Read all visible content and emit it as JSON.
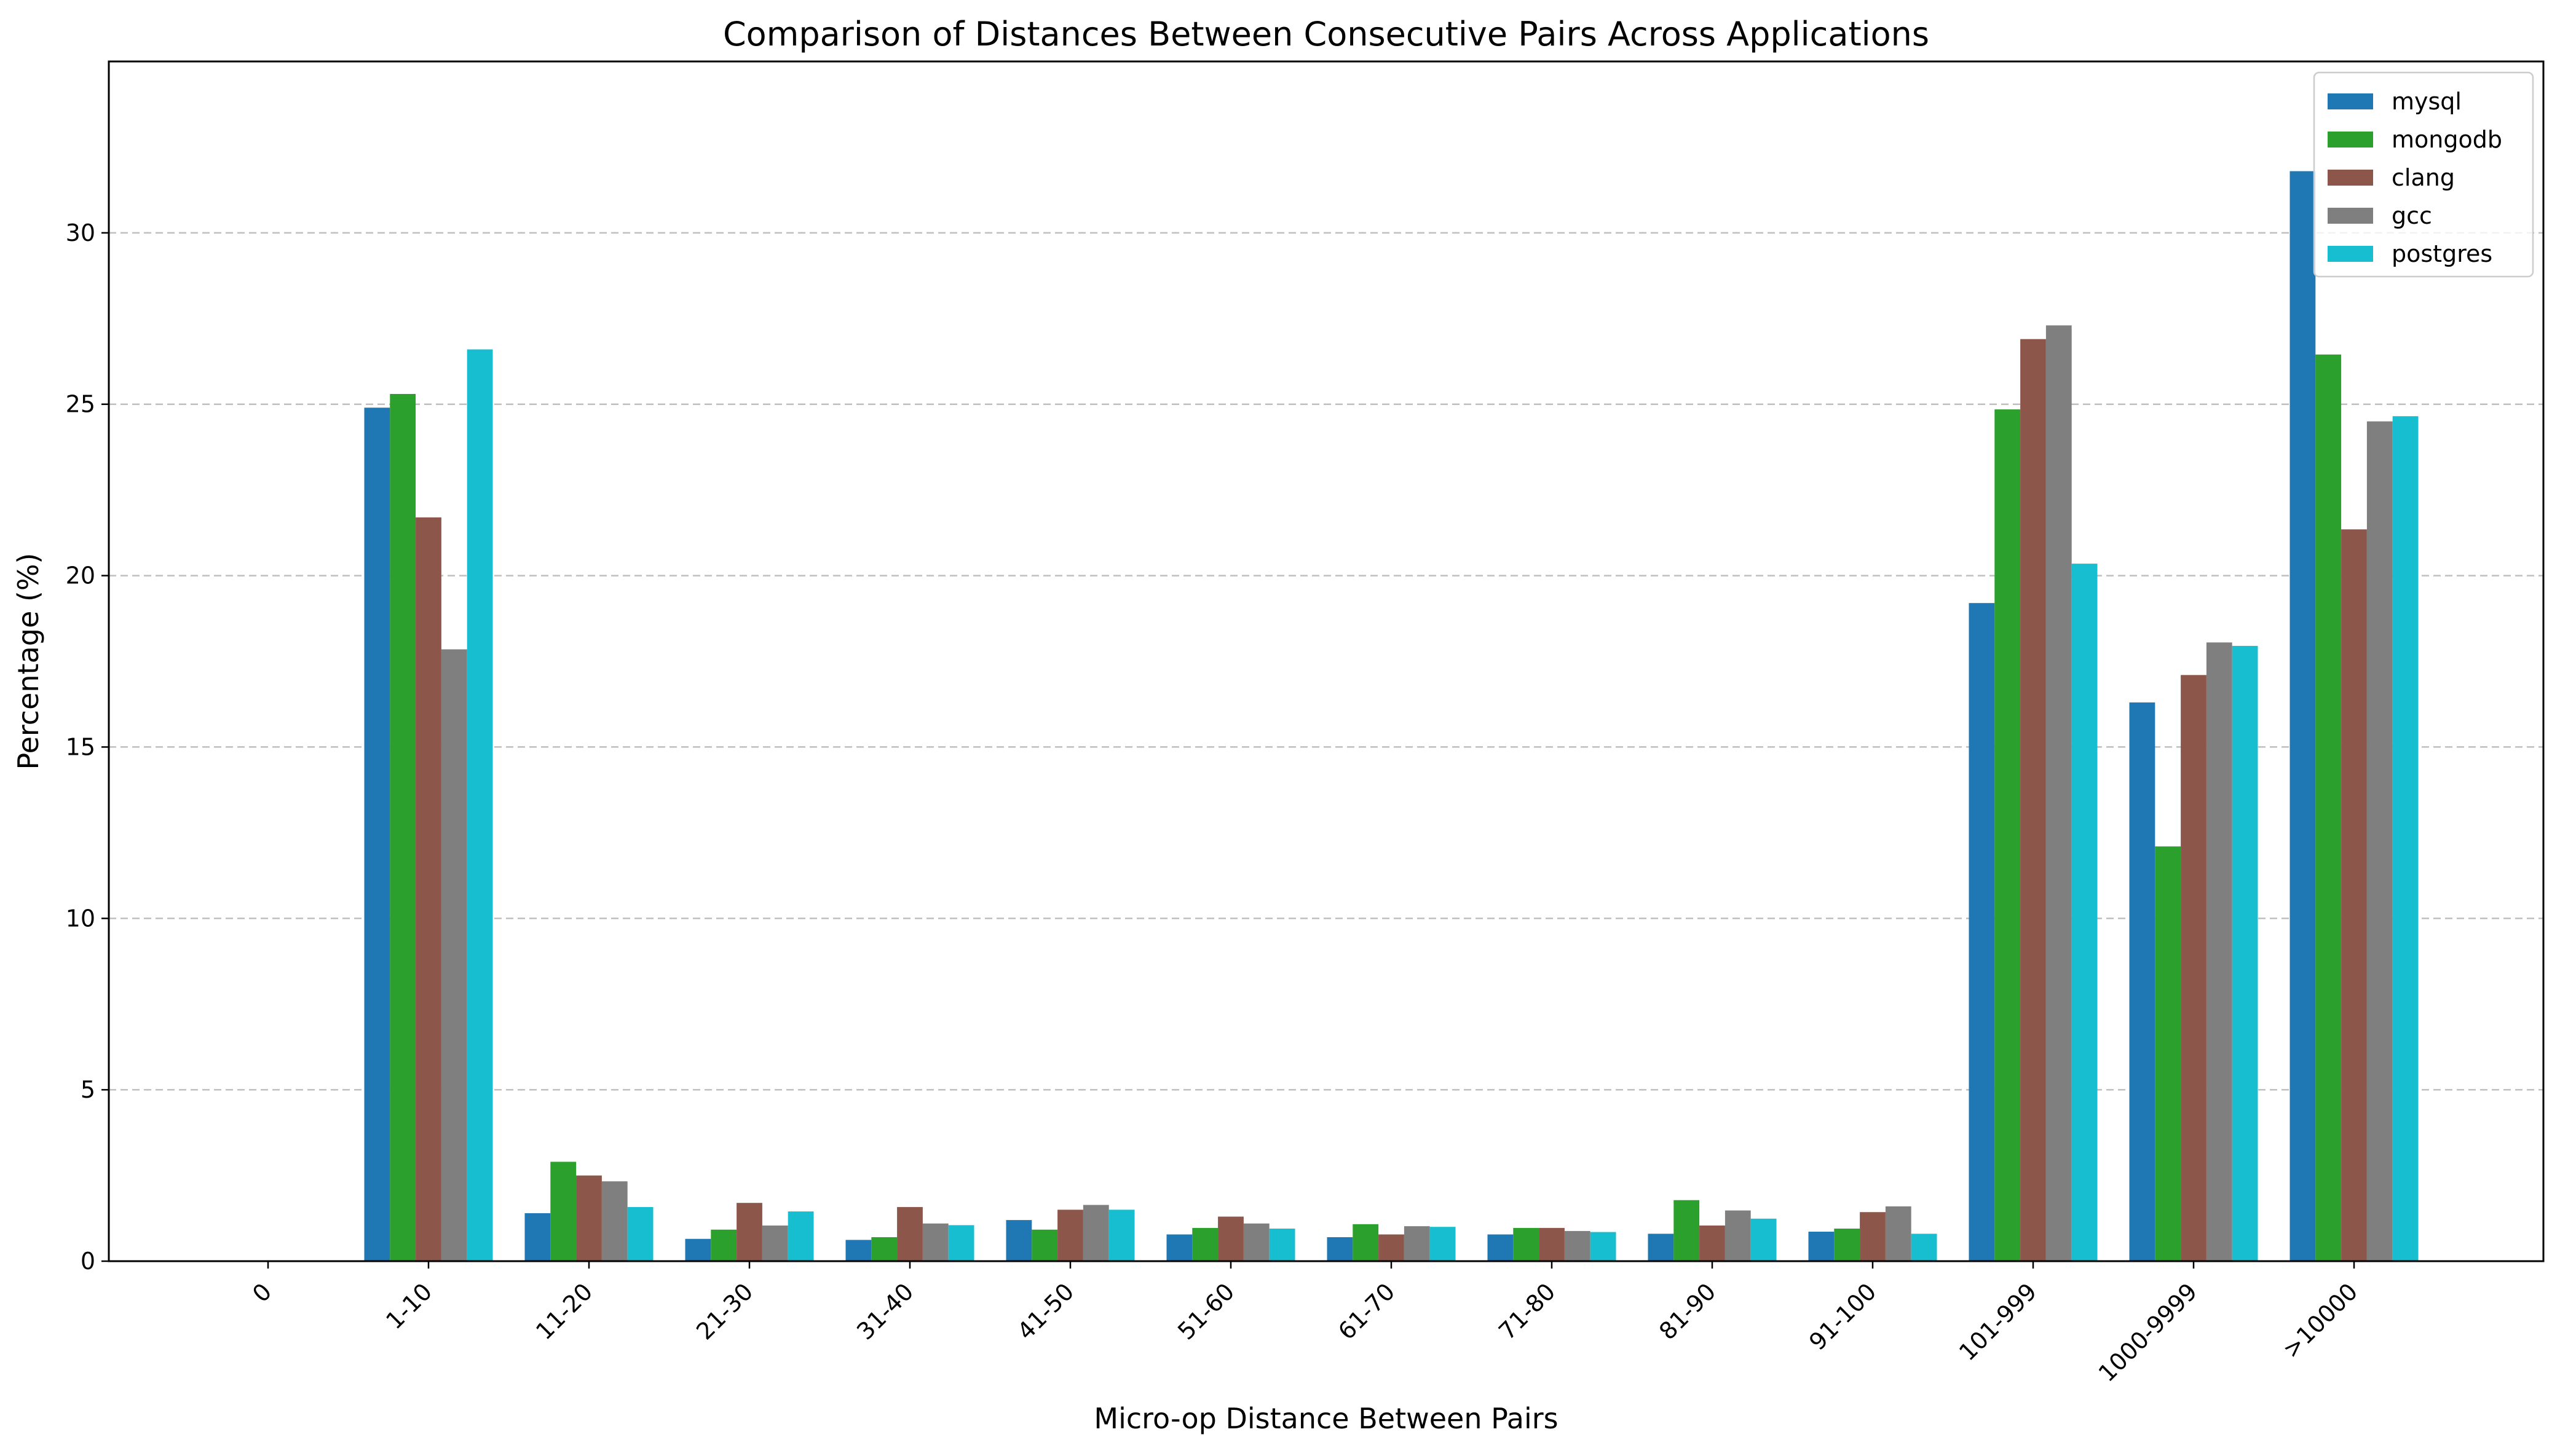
{
  "chart_data": {
    "type": "bar",
    "title": "Comparison of Distances Between Consecutive Pairs Across Applications",
    "xlabel": "Micro-op Distance Between Pairs",
    "ylabel": "Percentage (%)",
    "categories": [
      "0",
      "1-10",
      "11-20",
      "21-30",
      "31-40",
      "41-50",
      "51-60",
      "61-70",
      "71-80",
      "81-90",
      "91-100",
      "101-999",
      "1000-9999",
      ">10000"
    ],
    "ylim": [
      0,
      35
    ],
    "yticks": [
      0,
      5,
      10,
      15,
      20,
      25,
      30
    ],
    "grid": "y-dashed",
    "legend_position": "top-right",
    "series": [
      {
        "name": "mysql",
        "color": "#1f77b4",
        "values": [
          0,
          24.9,
          1.4,
          0.65,
          0.62,
          1.2,
          0.78,
          0.7,
          0.78,
          0.8,
          0.86,
          19.2,
          16.3,
          31.8
        ]
      },
      {
        "name": "mongodb",
        "color": "#2ca02c",
        "values": [
          0,
          25.3,
          2.9,
          0.92,
          0.7,
          0.92,
          0.97,
          1.08,
          0.97,
          1.78,
          0.95,
          24.85,
          12.1,
          26.45
        ]
      },
      {
        "name": "clang",
        "color": "#8c564b",
        "values": [
          0,
          21.7,
          2.5,
          1.7,
          1.58,
          1.5,
          1.3,
          0.78,
          0.97,
          1.04,
          1.43,
          26.9,
          17.1,
          21.35
        ]
      },
      {
        "name": "gcc",
        "color": "#7f7f7f",
        "values": [
          0,
          17.85,
          2.33,
          1.04,
          1.1,
          1.64,
          1.1,
          1.02,
          0.88,
          1.48,
          1.6,
          27.3,
          18.05,
          24.5
        ]
      },
      {
        "name": "postgres",
        "color": "#17becf",
        "values": [
          0,
          26.6,
          1.58,
          1.45,
          1.05,
          1.5,
          0.95,
          1.0,
          0.85,
          1.24,
          0.8,
          20.35,
          17.95,
          24.65
        ]
      }
    ]
  }
}
